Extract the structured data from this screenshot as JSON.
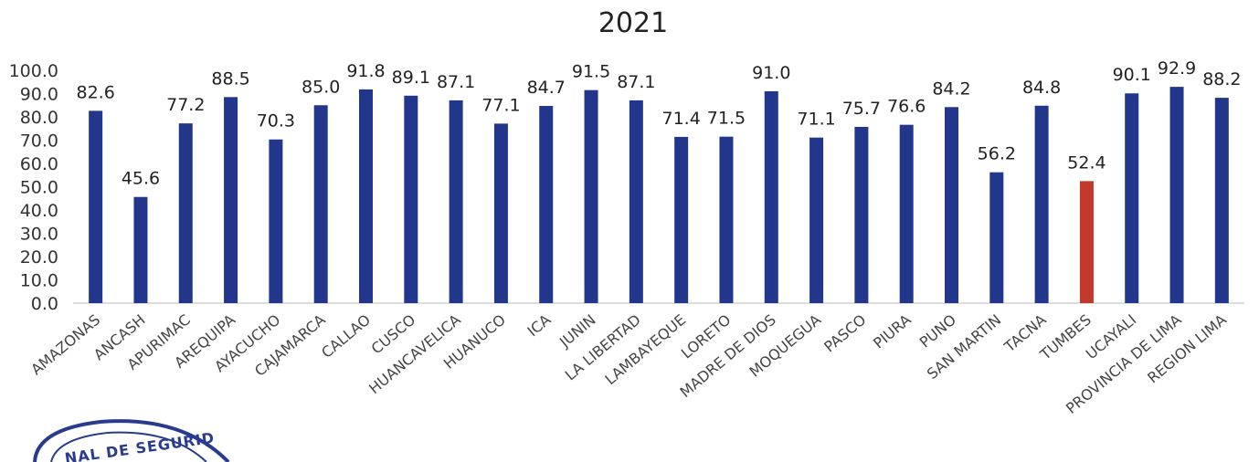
{
  "chart_data": {
    "type": "bar",
    "title": "2021",
    "xlabel": "",
    "ylabel": "",
    "ylim": [
      0,
      100
    ],
    "yticks": [
      "0.0",
      "10.0",
      "20.0",
      "30.0",
      "40.0",
      "50.0",
      "60.0",
      "70.0",
      "80.0",
      "90.0",
      "100.0"
    ],
    "grid": false,
    "categories": [
      "AMAZONAS",
      "ANCASH",
      "APURIMAC",
      "AREQUIPA",
      "AYACUCHO",
      "CAJAMARCA",
      "CALLAO",
      "CUSCO",
      "HUANCAVELICA",
      "HUANUCO",
      "ICA",
      "JUNIN",
      "LA LIBERTAD",
      "LAMBAYEQUE",
      "LORETO",
      "MADRE DE DIOS",
      "MOQUEGUA",
      "PASCO",
      "PIURA",
      "PUNO",
      "SAN MARTIN",
      "TACNA",
      "TUMBES",
      "UCAYALI",
      "PROVINCIA DE LIMA",
      "REGION LIMA"
    ],
    "values": [
      82.6,
      45.6,
      77.2,
      88.5,
      70.3,
      85.0,
      91.8,
      89.1,
      87.1,
      77.1,
      84.7,
      91.5,
      87.1,
      71.4,
      71.5,
      91.0,
      71.1,
      75.7,
      76.6,
      84.2,
      56.2,
      84.8,
      52.4,
      90.1,
      92.9,
      88.2
    ],
    "labels": [
      "82.6",
      "45.6",
      "77.2",
      "88.5",
      "70.3",
      "85.0",
      "91.8",
      "89.1",
      "87.1",
      "77.1",
      "84.7",
      "91.5",
      "87.1",
      "71.4",
      "71.5",
      "91.0",
      "71.1",
      "75.7",
      "76.6",
      "84.2",
      "56.2",
      "84.8",
      "52.4",
      "90.1",
      "92.9",
      "88.2"
    ],
    "colors": {
      "default": "#22378c",
      "highlight": "#c0392b"
    },
    "highlight_category": "TUMBES"
  },
  "seal": {
    "text": "NAL DE SEGURID"
  }
}
